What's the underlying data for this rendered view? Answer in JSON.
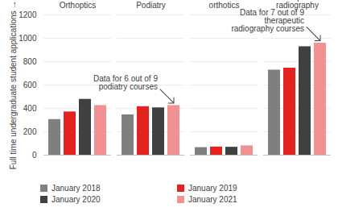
{
  "chart_data": {
    "type": "bar",
    "y_label": "Full time undergraduate student applications",
    "categories": [
      "Orthoptics",
      "Podiatry",
      "Prosthetics & orthotics",
      "Therapeutic radiography"
    ],
    "series": [
      {
        "name": "January 2018",
        "color": "#7f7f7f",
        "values": [
          305,
          345,
          65,
          728
        ]
      },
      {
        "name": "January 2019",
        "color": "#e3231f",
        "values": [
          370,
          415,
          70,
          745
        ]
      },
      {
        "name": "January 2020",
        "color": "#404040",
        "values": [
          478,
          405,
          68,
          928
        ]
      },
      {
        "name": "January 2021",
        "color": "#f19191",
        "values": [
          425,
          425,
          80,
          958
        ]
      }
    ],
    "ylim": [
      0,
      1200
    ],
    "yticks": [
      0,
      200,
      400,
      600,
      800,
      1000,
      1200
    ],
    "grid": true,
    "legend": "bottom",
    "annotations": [
      {
        "text": "Data for 6 out of 9 podiatry courses",
        "category": "Podiatry",
        "series": "January 2021"
      },
      {
        "text": "Data for 7 out of 9 therapeutic radiography courses",
        "category": "Therapeutic radiography",
        "series": "January 2021"
      }
    ]
  }
}
